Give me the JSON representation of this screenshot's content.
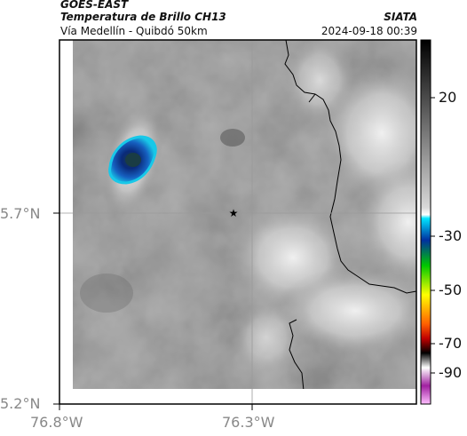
{
  "header": {
    "agency": "GOES-EAST",
    "product": "Temperatura de Brillo CH13",
    "region": "Vía Medellín - Quibdó 50km",
    "source": "SIATA",
    "datetime": "2024-09-18 00:39"
  },
  "map": {
    "lat_ticks": [
      "5.7°N",
      "5.2°N"
    ],
    "lon_ticks": [
      "76.8°W",
      "76.3°W"
    ],
    "marker_icon": "star-icon",
    "colors": {
      "background_gray": "#8c8c8c",
      "cold_cloud": "#0a2a7a",
      "cold_edge": "#18c8e8",
      "border_line": "#000000"
    }
  },
  "colorbar": {
    "ticks": [
      "20",
      "-30",
      "-50",
      "-70",
      "-90"
    ],
    "stops": [
      "#000000",
      "#c8c8c8",
      "#ffffff",
      "#00e5ff",
      "#0030a0",
      "#00c800",
      "#ffff00",
      "#ff6000",
      "#c00000",
      "#000000",
      "#ffffff",
      "#a020a0",
      "#ffc0ff"
    ]
  }
}
